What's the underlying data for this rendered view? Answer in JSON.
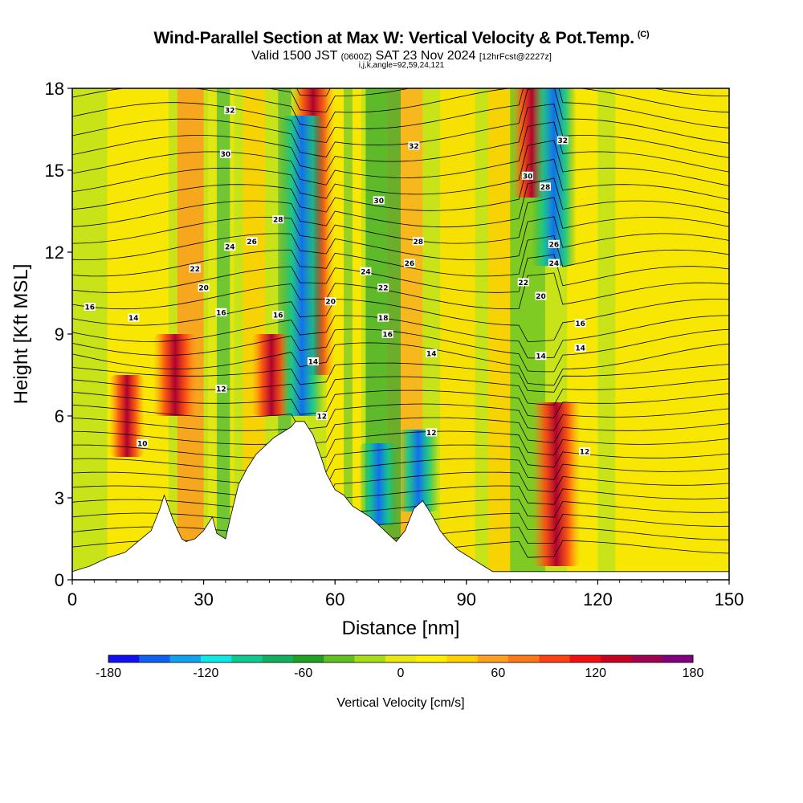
{
  "header": {
    "title": "Wind-Parallel Section at Max W: Vertical Velocity & Pot.Temp.",
    "copyright": "(C)",
    "valid_prefix": "Valid 1500 JST",
    "utc_time": "(0600Z)",
    "valid_date": "SAT 23 Nov 2024",
    "forecast": "[12hrFcst@2227z]",
    "params": "i,j,k,angle=92,59,24,121"
  },
  "chart_data": {
    "type": "heatmap",
    "xlabel": "Distance [nm]",
    "ylabel": "Height [Kft MSL]",
    "xlim": [
      0,
      150
    ],
    "ylim": [
      0,
      18
    ],
    "x_ticks": [
      "0",
      "30",
      "60",
      "90",
      "120",
      "150"
    ],
    "y_ticks": [
      "0",
      "3",
      "6",
      "9",
      "12",
      "15",
      "18"
    ],
    "grid": false,
    "colorbar": {
      "label": "Vertical Velocity [cm/s]",
      "range": [
        -180,
        180
      ],
      "tick_labels": [
        "-180",
        "-120",
        "-60",
        "0",
        "60",
        "120",
        "180"
      ],
      "colors": [
        "#1010f0",
        "#1060f0",
        "#10a0f0",
        "#10e8e8",
        "#10c890",
        "#10b060",
        "#20a020",
        "#60c020",
        "#a8dc18",
        "#e8e810",
        "#fff000",
        "#ffd000",
        "#ffa020",
        "#ff7818",
        "#ff4010",
        "#f01010",
        "#c80020",
        "#a00050",
        "#800080"
      ]
    },
    "updrafts": [
      {
        "x": 12.5,
        "y_bottom": 4.5,
        "y_top": 7.5,
        "w": 90
      },
      {
        "x": 23.5,
        "y_bottom": 6.0,
        "y_top": 9.0,
        "w": 150
      },
      {
        "x": 45.5,
        "y_bottom": 6.0,
        "y_top": 9.0,
        "w": 120
      },
      {
        "x": 55.0,
        "y_bottom": 7.5,
        "y_top": 18.0,
        "w": 140
      },
      {
        "x": 105.0,
        "y_bottom": 14.0,
        "y_top": 18.0,
        "w": 130
      },
      {
        "x": 110.5,
        "y_bottom": 0.5,
        "y_top": 6.5,
        "w": 180
      }
    ],
    "downdrafts": [
      {
        "x": 52.5,
        "y_bottom": 6.0,
        "y_top": 17.0,
        "w": -150
      },
      {
        "x": 70.0,
        "y_bottom": 2.0,
        "y_top": 5.0,
        "w": -120
      },
      {
        "x": 79.0,
        "y_bottom": 2.5,
        "y_top": 5.5,
        "w": -130
      },
      {
        "x": 110.0,
        "y_bottom": 11.5,
        "y_top": 18.0,
        "w": -160
      }
    ],
    "theta_contour_labels": [
      {
        "value": "10",
        "x": 16,
        "y": 5.0
      },
      {
        "value": "12",
        "x": 34,
        "y": 7.0
      },
      {
        "value": "12",
        "x": 57,
        "y": 6.0
      },
      {
        "value": "12",
        "x": 82,
        "y": 5.4
      },
      {
        "value": "12",
        "x": 117,
        "y": 4.7
      },
      {
        "value": "14",
        "x": 14,
        "y": 9.6
      },
      {
        "value": "14",
        "x": 55,
        "y": 8.0
      },
      {
        "value": "14",
        "x": 82,
        "y": 8.3
      },
      {
        "value": "14",
        "x": 107,
        "y": 8.2
      },
      {
        "value": "14",
        "x": 116,
        "y": 8.5
      },
      {
        "value": "16",
        "x": 4,
        "y": 10.0
      },
      {
        "value": "16",
        "x": 34,
        "y": 9.8
      },
      {
        "value": "16",
        "x": 47,
        "y": 9.7
      },
      {
        "value": "16",
        "x": 72,
        "y": 9.0
      },
      {
        "value": "16",
        "x": 116,
        "y": 9.4
      },
      {
        "value": "18",
        "x": 71,
        "y": 9.6
      },
      {
        "value": "20",
        "x": 30,
        "y": 10.7
      },
      {
        "value": "20",
        "x": 59,
        "y": 10.2
      },
      {
        "value": "20",
        "x": 107,
        "y": 10.4
      },
      {
        "value": "22",
        "x": 28,
        "y": 11.4
      },
      {
        "value": "22",
        "x": 71,
        "y": 10.7
      },
      {
        "value": "22",
        "x": 103,
        "y": 10.9
      },
      {
        "value": "24",
        "x": 36,
        "y": 12.2
      },
      {
        "value": "24",
        "x": 67,
        "y": 11.3
      },
      {
        "value": "24",
        "x": 110,
        "y": 11.6
      },
      {
        "value": "26",
        "x": 41,
        "y": 12.4
      },
      {
        "value": "26",
        "x": 77,
        "y": 11.6
      },
      {
        "value": "26",
        "x": 110,
        "y": 12.3
      },
      {
        "value": "28",
        "x": 47,
        "y": 13.2
      },
      {
        "value": "28",
        "x": 79,
        "y": 12.4
      },
      {
        "value": "28",
        "x": 108,
        "y": 14.4
      },
      {
        "value": "30",
        "x": 35,
        "y": 15.6
      },
      {
        "value": "30",
        "x": 70,
        "y": 13.9
      },
      {
        "value": "30",
        "x": 104,
        "y": 14.8
      },
      {
        "value": "32",
        "x": 36,
        "y": 17.2
      },
      {
        "value": "32",
        "x": 78,
        "y": 15.9
      },
      {
        "value": "32",
        "x": 112,
        "y": 16.1
      }
    ],
    "terrain_profile": {
      "x": [
        0,
        4,
        8,
        12,
        15,
        18,
        20,
        21,
        23,
        25,
        26,
        28,
        30,
        32,
        33,
        35,
        36,
        38,
        40,
        42,
        44,
        46,
        48,
        50,
        51,
        53,
        55,
        57,
        58,
        60,
        62,
        64,
        66,
        68,
        70,
        72,
        74,
        76,
        78,
        80,
        82,
        84,
        86,
        88,
        90,
        92,
        94,
        96,
        100,
        104,
        108,
        110,
        115,
        120,
        130,
        140,
        150
      ],
      "y": [
        0.3,
        0.5,
        0.8,
        1.0,
        1.4,
        1.8,
        2.6,
        3.1,
        2.2,
        1.5,
        1.4,
        1.5,
        1.8,
        2.3,
        1.7,
        1.5,
        2.2,
        3.5,
        4.1,
        4.6,
        4.9,
        5.2,
        5.4,
        5.6,
        5.8,
        5.8,
        5.3,
        4.4,
        3.9,
        3.3,
        3.1,
        2.7,
        2.5,
        2.3,
        2.0,
        1.7,
        1.4,
        1.8,
        2.6,
        2.9,
        2.4,
        1.8,
        1.4,
        1.1,
        0.9,
        0.7,
        0.5,
        0.3,
        0.3,
        0.3,
        0.3,
        0.3,
        0.3,
        0.3,
        0.3,
        0.3,
        0.3
      ]
    }
  }
}
